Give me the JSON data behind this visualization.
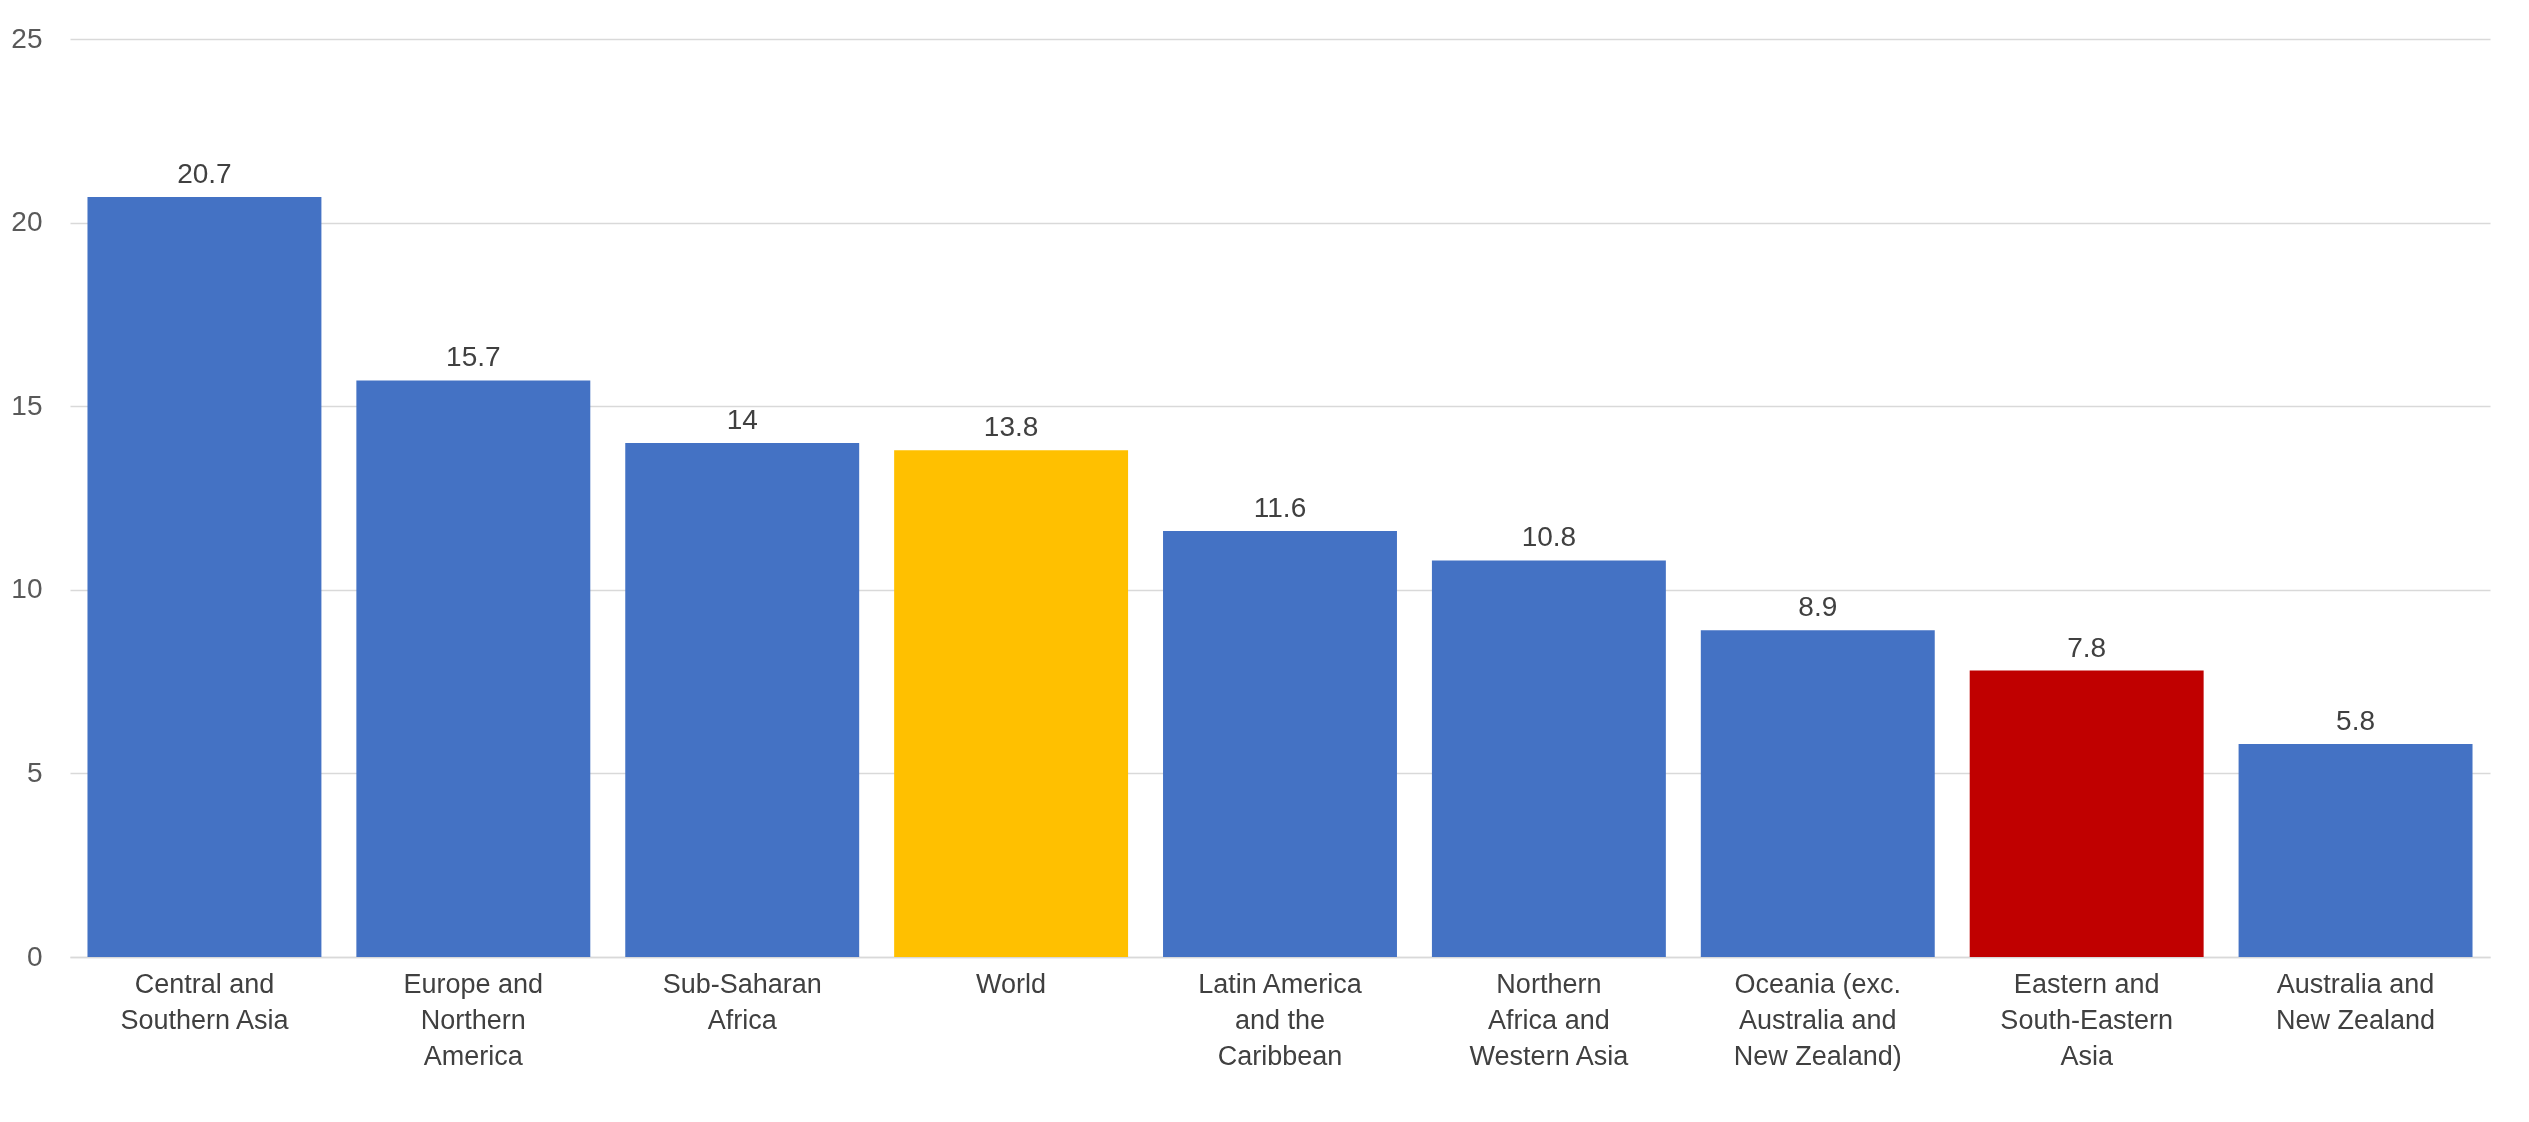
{
  "chart_data": {
    "type": "bar",
    "categories": [
      "Central and Southern Asia",
      "Europe and Northern America",
      "Sub-Saharan Africa",
      "World",
      "Latin America and the Caribbean",
      "Northern Africa and Western Asia",
      "Oceania (exc. Australia and New Zealand)",
      "Eastern and South-Eastern Asia",
      "Australia and New Zealand"
    ],
    "values": [
      20.7,
      15.7,
      14,
      13.8,
      11.6,
      10.8,
      8.9,
      7.8,
      5.8
    ],
    "colors": [
      "#4472c4",
      "#4472c4",
      "#4472c4",
      "#ffc000",
      "#4472c4",
      "#4472c4",
      "#4472c4",
      "#c00000",
      "#4472c4"
    ],
    "ylim": [
      0,
      25
    ],
    "yticks": [
      0,
      5,
      10,
      15,
      20,
      25
    ],
    "grid": "y",
    "data_labels": true
  }
}
